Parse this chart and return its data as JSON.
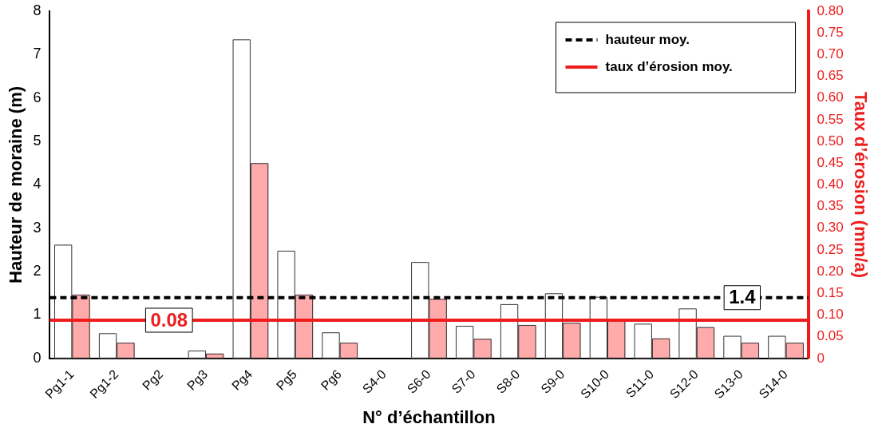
{
  "chart_data": {
    "type": "bar",
    "xlabel": "N° d’échantillon",
    "ylabel": "Hauteur de moraine (m)",
    "y2label": "Taux d’érosion (mm/a)",
    "categories": [
      "Pg1-1",
      "Pg1-2",
      "Pg2",
      "Pg3",
      "Pg4",
      "Pg5",
      "Pg6",
      "S4-0",
      "S6-0",
      "S7-0",
      "S8-0",
      "S9-0",
      "S10-0",
      "S11-0",
      "S12-0",
      "S13-0",
      "S14-0"
    ],
    "series": [
      {
        "color": "#ffffff",
        "values": [
          2.62,
          0.58,
          null,
          0.18,
          7.35,
          2.48,
          0.6,
          null,
          2.22,
          0.75,
          1.25,
          1.5,
          1.42,
          0.8,
          1.15,
          0.52,
          0.52
        ]
      },
      {
        "color": "#ffabab",
        "axis": "y2",
        "values": [
          0.147,
          0.036,
          null,
          0.011,
          0.45,
          0.147,
          0.036,
          null,
          0.137,
          0.045,
          0.077,
          0.082,
          0.088,
          0.046,
          0.072,
          0.036,
          0.036
        ]
      }
    ],
    "ylim": [
      0,
      8
    ],
    "yticks": [
      0,
      1,
      2,
      3,
      4,
      5,
      6,
      7,
      8
    ],
    "y2lim": [
      0,
      0.8
    ],
    "y2ticks": [
      0,
      {
        "value": 0.05,
        "label": "0.05"
      },
      {
        "value": 0.1,
        "label": "0.10"
      },
      {
        "value": 0.15,
        "label": "0.15"
      },
      {
        "value": 0.2,
        "label": "0.20"
      },
      {
        "value": 0.25,
        "label": "0.25"
      },
      {
        "value": 0.3,
        "label": "0.30"
      },
      {
        "value": 0.35,
        "label": "0.35"
      },
      {
        "value": 0.4,
        "label": "0.40"
      },
      {
        "value": 0.45,
        "label": "0.45"
      },
      {
        "value": 0.5,
        "label": "0.50"
      },
      {
        "value": 0.55,
        "label": "0.55"
      },
      {
        "value": 0.6,
        "label": "0.60"
      },
      {
        "value": 0.65,
        "label": "0.65"
      },
      {
        "value": 0.7,
        "label": "0.70"
      },
      {
        "value": 0.75,
        "label": "0.75"
      },
      {
        "value": 0.8,
        "label": "0.80"
      }
    ],
    "ref_lines": [
      {
        "axis": "y",
        "value": 1.4,
        "label": "hauteur moy.",
        "color": "#000000",
        "line_style": "dashed"
      },
      {
        "axis": "y2",
        "value": 0.088,
        "label": "taux d’érosion moy.",
        "color": "#ee1c1c",
        "line_style": "solid"
      }
    ],
    "annotations": [
      "1.4",
      "0.08"
    ],
    "legend": "top right",
    "grid": false
  }
}
